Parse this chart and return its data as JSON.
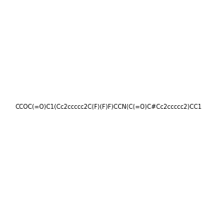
{
  "smiles": "CCOC(=O)C1(Cc2ccccc2C(F)(F)F)CCN(C(=O)C#Cc2ccccc2)CC1",
  "title": "",
  "img_size": [
    300,
    300
  ],
  "background_color": "#f0f0f0",
  "atom_colors": {
    "O": "#ff0000",
    "N": "#0000ff",
    "F": "#ff00ff",
    "C": "#000000"
  }
}
